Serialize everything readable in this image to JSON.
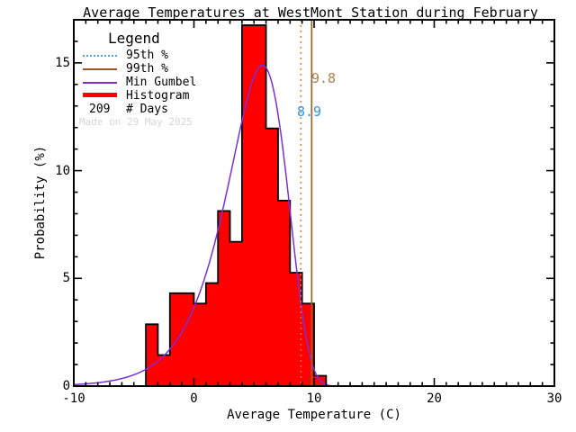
{
  "chart_data": {
    "type": "bar",
    "subtype": "histogram-with-distribution-fit",
    "title": "Average Temperatures at WestMont Station during February",
    "xlabel": "Average Temperature (C)",
    "ylabel": "Probability (%)",
    "xlim": [
      -10,
      30
    ],
    "ylim": [
      0,
      17
    ],
    "grid": false,
    "x_ticks": {
      "major": [
        -10,
        0,
        10,
        20,
        30
      ],
      "labels": [
        "-10",
        "0",
        "10",
        "20",
        "30"
      ],
      "minor_step": 1
    },
    "y_ticks": {
      "major": [
        0,
        5,
        10,
        15
      ],
      "labels": [
        "0",
        "5",
        "10",
        "15"
      ],
      "minor_step": 1
    },
    "histogram": {
      "name": "Histogram",
      "bin_width": 1,
      "bin_left_edges": [
        -4,
        -3,
        -2,
        -1,
        0,
        1,
        2,
        3,
        4,
        5,
        6,
        7,
        8,
        9,
        10
      ],
      "probabilities_percent": [
        2.87,
        1.44,
        4.31,
        4.31,
        3.83,
        4.78,
        8.13,
        6.7,
        16.75,
        16.75,
        11.96,
        8.61,
        5.26,
        3.83,
        0.48
      ],
      "bin_days": [
        6,
        3,
        9,
        9,
        8,
        10,
        17,
        14,
        35,
        35,
        25,
        18,
        11,
        8,
        1
      ],
      "fill_color": "#ff0000",
      "outline_color": "#000000"
    },
    "gumbel": {
      "name": "Min Gumbel",
      "mu": 5.7,
      "beta": 2.47,
      "peak_percent": 14.9,
      "color": "#7a2fd8"
    },
    "percentiles": [
      {
        "name": "95th %",
        "value": 8.9,
        "label": "8.9",
        "line_style": "dotted",
        "line_color": "#c8813c",
        "label_color": "#2e95e8"
      },
      {
        "name": "99th %",
        "value": 9.8,
        "label": "9.8",
        "line_style": "solid",
        "line_color": "#9a6224",
        "label_color": "#a3854a"
      }
    ],
    "legend": {
      "heading": "Legend",
      "items": [
        {
          "label": "95th %",
          "sample": "dotted-line",
          "color": "#4da1e8"
        },
        {
          "label": "99th %",
          "sample": "solid-line",
          "color": "#a0522d"
        },
        {
          "label": "Min Gumbel",
          "sample": "solid-line",
          "color": "#7a2fd8"
        },
        {
          "label": "Histogram",
          "sample": "thick-line",
          "color": "#ff0000"
        }
      ],
      "days_value": "209",
      "days_label": "# Days"
    },
    "watermark": "Made on 29 May 2025",
    "n_days": 209,
    "frame_color": "#000000",
    "background": "#ffffff"
  }
}
